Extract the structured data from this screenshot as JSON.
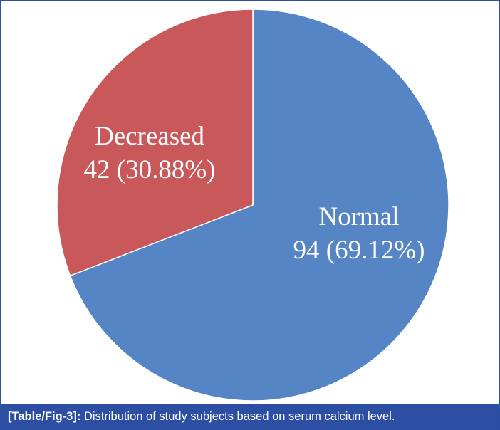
{
  "chart_data": {
    "type": "pie",
    "slices": [
      {
        "name": "Normal",
        "value": 94,
        "percent": "69.12%",
        "label": "94 (69.12%)",
        "color": "#5585c5"
      },
      {
        "name": "Decreased",
        "value": 42,
        "percent": "30.88%",
        "label": "42 (30.88%)",
        "color": "#c9585a"
      }
    ],
    "start": "12 o'clock",
    "direction": "clockwise"
  },
  "caption": {
    "ref": "[Table/Fig-3]:",
    "text": " Distribution of study subjects based on serum calcium level."
  }
}
